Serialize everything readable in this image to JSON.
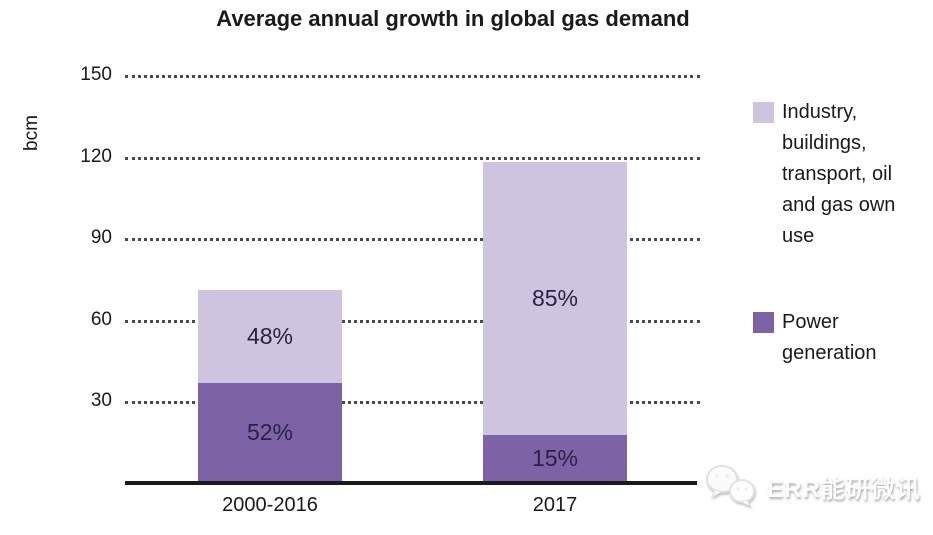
{
  "title": "Average annual growth in global gas demand",
  "y_axis": {
    "unit_label": "bcm",
    "ticks": [
      150,
      120,
      90,
      60,
      30
    ]
  },
  "chart_data": {
    "type": "bar",
    "stacked": true,
    "title": "Average annual growth in global gas demand",
    "xlabel": "",
    "ylabel": "bcm",
    "ylim": [
      0,
      150
    ],
    "ytick_interval": 30,
    "grid": "horizontal-dotted",
    "legend_position": "right",
    "categories": [
      "2000-2016",
      "2017"
    ],
    "totals_bcm": [
      71,
      118
    ],
    "series": [
      {
        "name": "Power generation",
        "color": "#7d63a6",
        "percent": [
          52,
          15
        ],
        "values_bcm": [
          37,
          18
        ],
        "labels": [
          "52%",
          "15%"
        ]
      },
      {
        "name": "Industry, buildings, transport, oil and gas own use",
        "color": "#cfc4e0",
        "percent": [
          48,
          85
        ],
        "values_bcm": [
          34,
          100
        ],
        "labels": [
          "48%",
          "85%"
        ]
      }
    ]
  },
  "legend": {
    "items": [
      {
        "label": "Industry, buildings, transport, oil and gas own use",
        "color": "#cfc4e0"
      },
      {
        "label": "Power generation",
        "color": "#7d63a6"
      }
    ]
  },
  "watermark": {
    "text": "ERR能研微讯",
    "icon": "wechat-chat-bubbles-icon"
  },
  "colors": {
    "industry_segment": "#cfc4e0",
    "power_segment": "#7d63a6",
    "segment_label_text": "#2b2144",
    "axis_line": "#1a1a1a",
    "gridline": "#4a4a4a"
  }
}
